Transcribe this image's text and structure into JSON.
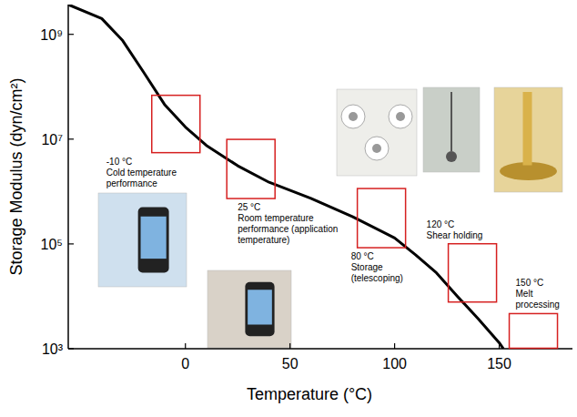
{
  "chart_data": {
    "type": "line",
    "x_label": "Temperature (°C)",
    "y_label": "Storage Modulus (dyn/cm²)",
    "x": [
      -56,
      -40,
      -30,
      -20,
      -10,
      0,
      10,
      25,
      40,
      60,
      80,
      100,
      110,
      120,
      130,
      140,
      150,
      152
    ],
    "values": [
      3700000000,
      2000000000,
      760000000,
      190000000,
      46000000,
      17000000,
      7600000,
      3100000,
      1500000,
      740000,
      330000,
      130000,
      62000,
      28000,
      10000,
      3700,
      1300,
      1000
    ],
    "color": "#000000",
    "log": "y",
    "xlim": [
      -56,
      185
    ],
    "ylim": [
      1000,
      3700000000
    ],
    "xticks": [
      0,
      50,
      100,
      150
    ],
    "yticks": [
      {
        "value": 1000,
        "label": "10³"
      },
      {
        "value": 100000,
        "label": "10⁵"
      },
      {
        "value": 10000000,
        "label": "10⁷"
      },
      {
        "value": 1000000000,
        "label": "10⁹"
      }
    ],
    "annotations": [
      {
        "x": -10,
        "text": [
          "-10 °C",
          "Cold temperature performance"
        ]
      },
      {
        "x": 25,
        "text": [
          "25 °C",
          "Room temperature",
          "performance (application temperature)"
        ]
      },
      {
        "x": 80,
        "text": [
          "80 °C",
          "Storage (telescoping)"
        ]
      },
      {
        "x": 120,
        "text": [
          "120 °C",
          "Shear holding"
        ]
      },
      {
        "x": 150,
        "text": [
          "150 °C",
          "Melt processing"
        ]
      }
    ]
  }
}
